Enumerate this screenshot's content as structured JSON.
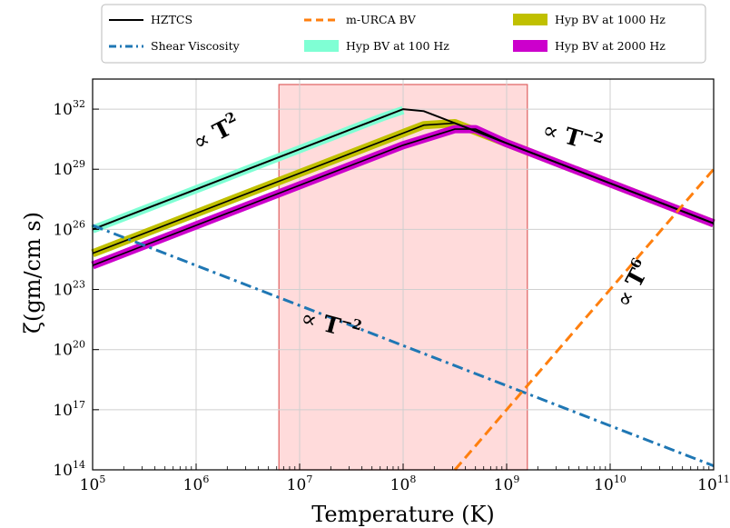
{
  "chart_data": {
    "type": "line",
    "title": "",
    "xlabel": "Temperature (K)",
    "ylabel": "ζ(gm/cm s)",
    "xscale": "log",
    "yscale": "log",
    "xlim_log10": [
      5,
      11
    ],
    "ylim_log10": [
      14,
      33.5
    ],
    "x_ticks": [
      {
        "base": "10",
        "exp": "5",
        "log": 5
      },
      {
        "base": "10",
        "exp": "6",
        "log": 6
      },
      {
        "base": "10",
        "exp": "7",
        "log": 7
      },
      {
        "base": "10",
        "exp": "8",
        "log": 8
      },
      {
        "base": "10",
        "exp": "9",
        "log": 9
      },
      {
        "base": "10",
        "exp": "10",
        "log": 10
      },
      {
        "base": "10",
        "exp": "11",
        "log": 11
      }
    ],
    "y_ticks": [
      {
        "base": "10",
        "exp": "14",
        "log": 14
      },
      {
        "base": "10",
        "exp": "17",
        "log": 17
      },
      {
        "base": "10",
        "exp": "20",
        "log": 20
      },
      {
        "base": "10",
        "exp": "23",
        "log": 23
      },
      {
        "base": "10",
        "exp": "26",
        "log": 26
      },
      {
        "base": "10",
        "exp": "29",
        "log": 29
      },
      {
        "base": "10",
        "exp": "32",
        "log": 32
      }
    ],
    "grid": true,
    "legend_position": "top-outside",
    "shaded_region": {
      "x_log10": [
        6.8,
        9.2
      ],
      "color": "#ff9999"
    },
    "series": [
      {
        "name": "HZTCS",
        "style": "solid",
        "color": "#000000",
        "points_log10": [
          [
            5,
            26.0
          ],
          [
            5.5,
            27.0
          ],
          [
            6,
            28.0
          ],
          [
            6.5,
            29.0
          ],
          [
            7,
            30.0
          ],
          [
            7.5,
            31.0
          ],
          [
            7.8,
            31.6
          ],
          [
            8,
            32.0
          ],
          [
            8.2,
            31.9
          ],
          [
            8.5,
            31.3
          ],
          [
            9,
            30.3
          ],
          [
            9.5,
            29.3
          ],
          [
            10,
            28.3
          ],
          [
            10.5,
            27.3
          ],
          [
            11,
            26.3
          ]
        ]
      },
      {
        "name": "Shear Viscosity",
        "style": "dashdot",
        "color": "#1f77b4",
        "points_log10": [
          [
            5,
            26.2
          ],
          [
            6,
            24.2
          ],
          [
            7,
            22.2
          ],
          [
            8,
            20.2
          ],
          [
            9,
            18.2
          ],
          [
            10,
            16.2
          ],
          [
            11,
            14.2
          ]
        ]
      },
      {
        "name": "m-URCA BV",
        "style": "dashed",
        "color": "#ff7f0e",
        "points_log10": [
          [
            8.5,
            14.0
          ],
          [
            9,
            17.0
          ],
          [
            9.5,
            20.0
          ],
          [
            10,
            23.0
          ],
          [
            10.5,
            26.0
          ],
          [
            11,
            29.0
          ]
        ]
      },
      {
        "name": "Hyp BV at 100 Hz",
        "style": "band",
        "color": "#7fffd4",
        "points_log10": [
          [
            5,
            26.0
          ],
          [
            5.5,
            27.0
          ],
          [
            6,
            28.0
          ],
          [
            6.5,
            29.0
          ],
          [
            7,
            30.0
          ],
          [
            7.5,
            31.0
          ],
          [
            7.8,
            31.6
          ],
          [
            8,
            31.95
          ]
        ]
      },
      {
        "name": "Hyp BV at 1000 Hz",
        "style": "band",
        "color": "#c0c000",
        "points_log10": [
          [
            5,
            24.8
          ],
          [
            6,
            26.8
          ],
          [
            7,
            28.8
          ],
          [
            8,
            30.8
          ],
          [
            8.2,
            31.2
          ],
          [
            8.5,
            31.3
          ],
          [
            9,
            30.3
          ],
          [
            10,
            28.3
          ],
          [
            11,
            26.3
          ]
        ]
      },
      {
        "name": "Hyp BV at 2000 Hz",
        "style": "band",
        "color": "#cc00cc",
        "points_log10": [
          [
            5,
            24.2
          ],
          [
            6,
            26.2
          ],
          [
            7,
            28.2
          ],
          [
            8,
            30.2
          ],
          [
            8.5,
            31.0
          ],
          [
            8.7,
            31.0
          ],
          [
            9,
            30.3
          ],
          [
            10,
            28.3
          ],
          [
            11,
            26.3
          ]
        ]
      }
    ],
    "annotations": [
      {
        "base": "∝ ",
        "bold": "T",
        "exp": "2"
      },
      {
        "base": "∝ ",
        "bold": "T",
        "exp": "−2"
      },
      {
        "base": "∝ ",
        "bold": "T",
        "exp": "−2"
      },
      {
        "base": "∝ ",
        "bold": "T",
        "exp": "6"
      }
    ]
  }
}
